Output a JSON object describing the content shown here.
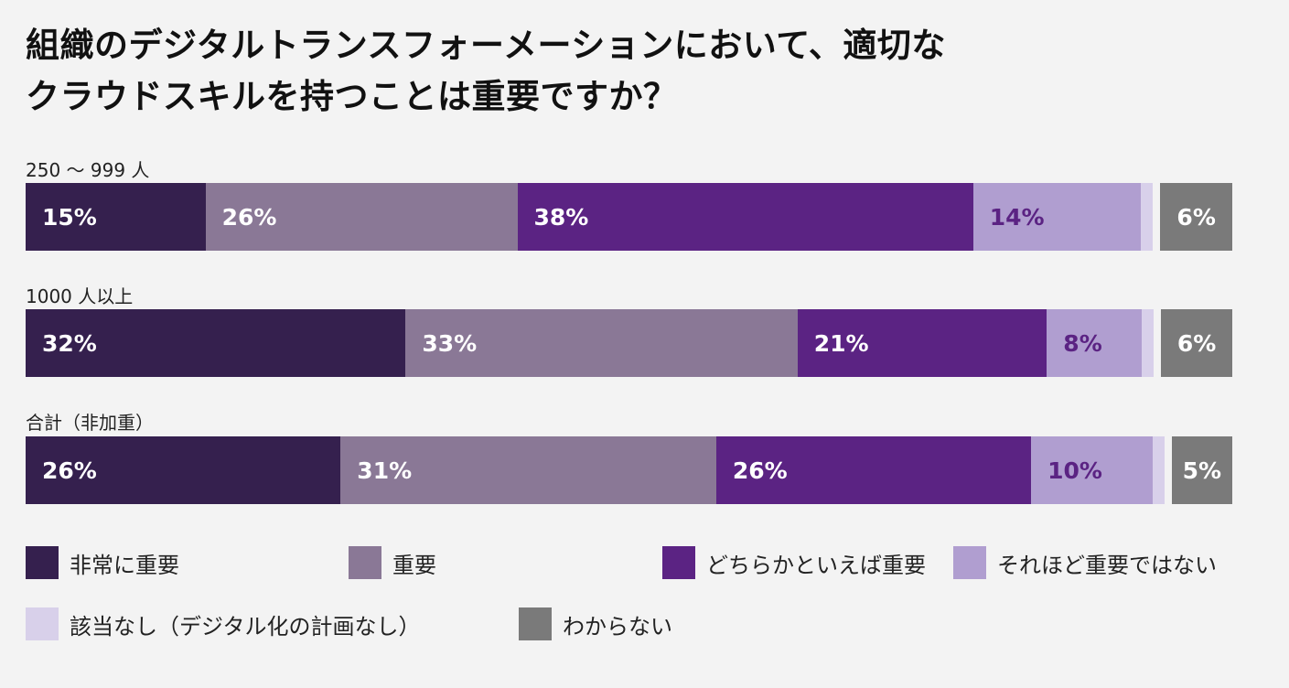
{
  "title": {
    "line1": "組織のデジタルトランスフォーメーションにおいて、適切な",
    "line2": "クラウドスキルを持つことは重要ですか？"
  },
  "colors": {
    "very_important": "#35204e",
    "important": "#8a7896",
    "somewhat_important": "#5b2383",
    "not_so_important": "#b09ed0",
    "not_applicable": "#d8d0ea",
    "unknown": "#7a7a7a"
  },
  "chart_data": {
    "type": "bar",
    "orientation": "horizontal-stacked-100",
    "categories": [
      "250 〜 999 人",
      "1000 人以上",
      "合計（非加重）"
    ],
    "series": [
      {
        "key": "very_important",
        "name": "非常に重要",
        "values": [
          15,
          32,
          26
        ],
        "labels": [
          "15%",
          "32%",
          "26%"
        ]
      },
      {
        "key": "important",
        "name": "重要",
        "values": [
          26,
          33,
          31
        ],
        "labels": [
          "26%",
          "33%",
          "31%"
        ]
      },
      {
        "key": "somewhat_important",
        "name": "どちらかといえば重要",
        "values": [
          38,
          21,
          26
        ],
        "labels": [
          "38%",
          "21%",
          "26%"
        ]
      },
      {
        "key": "not_so_important",
        "name": "それほど重要ではない",
        "values": [
          14,
          8,
          10
        ],
        "labels": [
          "14%",
          "8%",
          "10%"
        ]
      },
      {
        "key": "not_applicable",
        "name": "該当なし（デジタル化の計画なし）",
        "values": [
          1,
          1,
          1
        ],
        "labels": [
          "",
          "",
          ""
        ]
      },
      {
        "key": "unknown",
        "name": "わからない",
        "values": [
          6,
          6,
          5
        ],
        "labels": [
          "6%",
          "6%",
          "5%"
        ]
      }
    ]
  }
}
